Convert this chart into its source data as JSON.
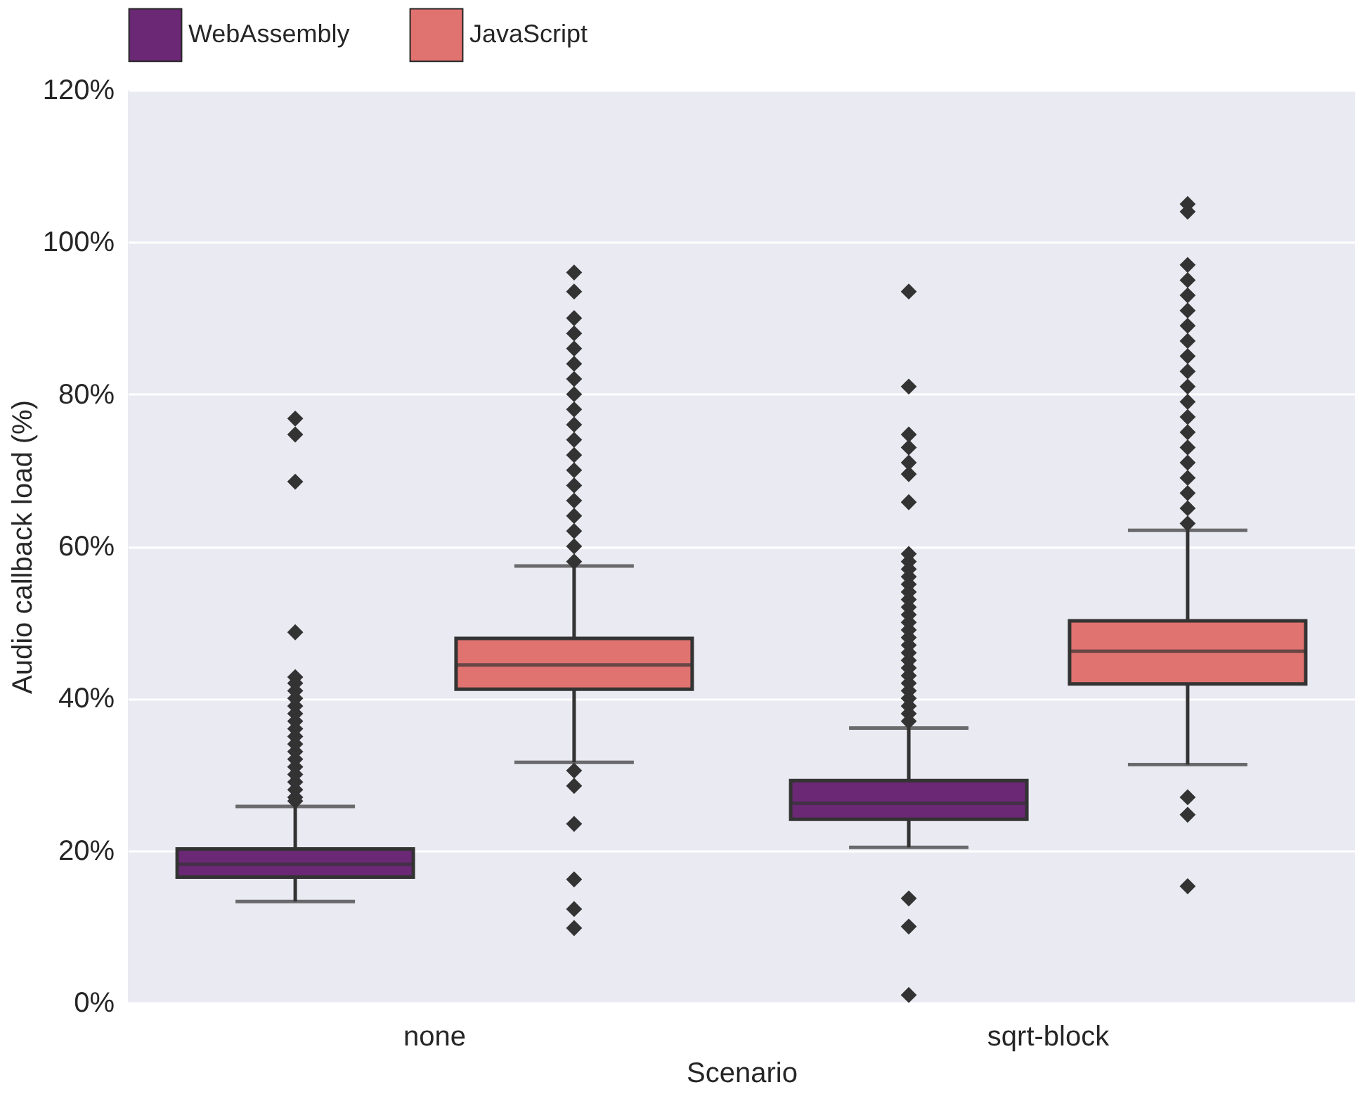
{
  "chart_data": {
    "type": "box",
    "xlabel": "Scenario",
    "ylabel": "Audio callback load (%)",
    "categories": [
      "none",
      "sqrt-block"
    ],
    "series": [
      {
        "name": "WebAssembly",
        "color": "#6a2875",
        "boxes": [
          {
            "low": 13.3,
            "q1": 16.5,
            "median": 18.2,
            "q3": 20.2,
            "high": 25.8,
            "outliers": [
              26.5,
              27,
              28,
              29,
              30,
              31,
              32,
              33,
              34,
              35,
              36,
              37,
              38,
              39,
              40,
              41,
              42,
              42.8,
              48.7,
              68.5,
              74.7,
              76.8
            ]
          },
          {
            "low": 20.4,
            "q1": 24.1,
            "median": 26.2,
            "q3": 29.2,
            "high": 36.1,
            "outliers": [
              1,
              10,
              13.7,
              37,
              38,
              39,
              40,
              41,
              42,
              43,
              44,
              45,
              46,
              47,
              48,
              49,
              50,
              51,
              52,
              53,
              54,
              55,
              56,
              57,
              58,
              59,
              65.8,
              69.5,
              71,
              73,
              74.7,
              81,
              93.5
            ]
          }
        ]
      },
      {
        "name": "JavaScript",
        "color": "#e07370",
        "boxes": [
          {
            "low": 31.6,
            "q1": 41.2,
            "median": 44.4,
            "q3": 47.9,
            "high": 57.4,
            "outliers": [
              9.8,
              12.3,
              16.2,
              23.5,
              28.5,
              30.5,
              58,
              60,
              62,
              64,
              66,
              68,
              70,
              72,
              74,
              76,
              78,
              80,
              82,
              84,
              86,
              88,
              90,
              93.5,
              96
            ]
          },
          {
            "low": 31.3,
            "q1": 41.9,
            "median": 46.2,
            "q3": 50.2,
            "high": 62.1,
            "outliers": [
              15.3,
              24.7,
              27,
              63,
              65,
              67,
              69,
              71,
              73,
              75,
              77,
              79,
              81,
              83,
              85,
              87,
              89,
              91,
              93,
              95,
              97,
              104,
              105
            ]
          }
        ]
      }
    ],
    "ylim": [
      0,
      120
    ],
    "yticks": [
      {
        "value": 0,
        "label": "0%"
      },
      {
        "value": 20,
        "label": "20%"
      },
      {
        "value": 40,
        "label": "40%"
      },
      {
        "value": 60,
        "label": "60%"
      },
      {
        "value": 80,
        "label": "80%"
      },
      {
        "value": 100,
        "label": "100%"
      },
      {
        "value": 120,
        "label": "120%"
      }
    ],
    "grid": "y",
    "legend": "top",
    "marker": "diamond"
  }
}
